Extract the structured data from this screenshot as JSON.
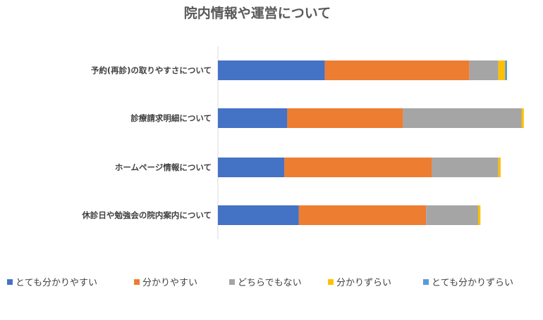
{
  "chart_data": {
    "type": "bar",
    "orientation": "horizontal",
    "stacked": "percent",
    "title": "院内情報や運営について",
    "categories": [
      "予約(再診)の取りやすさについて",
      "診療請求明細について",
      "ホームページ情報について",
      "休診日や勉強会の院内案内について"
    ],
    "series": [
      {
        "name": "とても分かりやすい",
        "color": "#4472C4",
        "values": [
          37,
          24,
          23,
          28
        ]
      },
      {
        "name": "分かりやすい",
        "color": "#ED7D31",
        "values": [
          50,
          40,
          51,
          44
        ]
      },
      {
        "name": "どちらでもない",
        "color": "#A5A5A5",
        "values": [
          10,
          41,
          23,
          18
        ]
      },
      {
        "name": "分かりずらい",
        "color": "#FFC000",
        "values": [
          2.3,
          0.8,
          0.8,
          0.8
        ]
      },
      {
        "name": "とても分かりずらい",
        "color": "#5B9BD5",
        "values": [
          0.7,
          0,
          0,
          0
        ]
      }
    ],
    "xlim": [
      0,
      100
    ],
    "grid": false,
    "legend_position": "bottom"
  }
}
